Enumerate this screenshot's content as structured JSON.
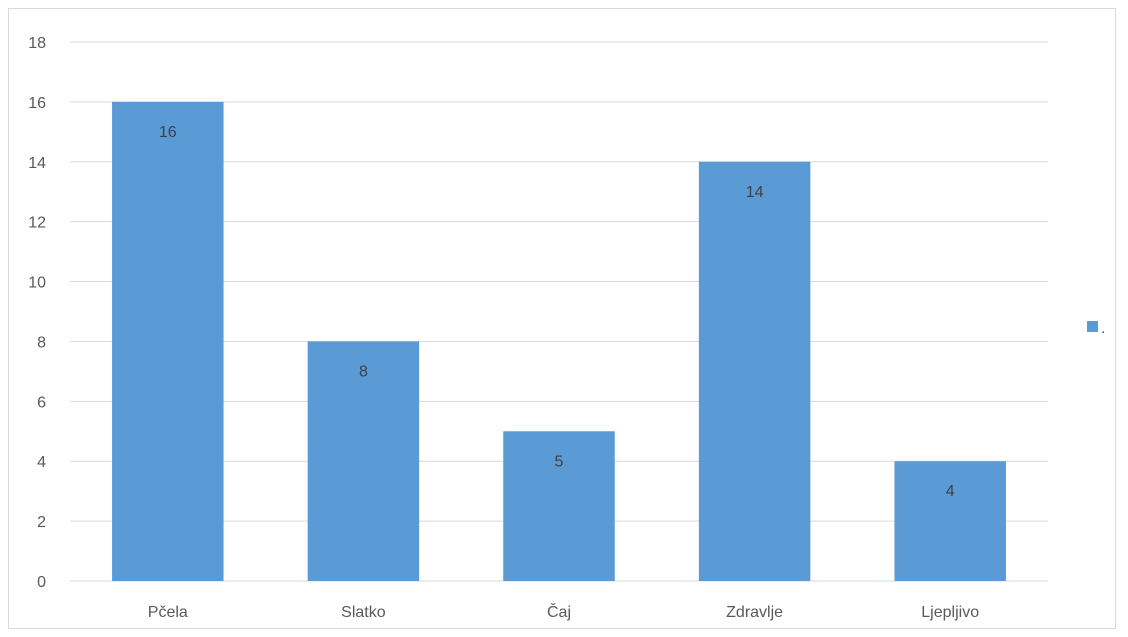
{
  "chart_data": {
    "type": "bar",
    "categories": [
      "Pčela",
      "Slatko",
      "Čaj",
      "Zdravlje",
      "Ljepljivo"
    ],
    "series": [
      {
        "name": ".",
        "values": [
          16,
          8,
          5,
          14,
          4
        ],
        "color": "#5b9bd5"
      }
    ],
    "title": "",
    "xlabel": "",
    "ylabel": "",
    "ylim": [
      0,
      18
    ],
    "ytick_step": 2,
    "grid": true,
    "legend_position": "right",
    "data_labels": true,
    "gridline_color": "#d9d9d9",
    "text_color": "#595959"
  }
}
